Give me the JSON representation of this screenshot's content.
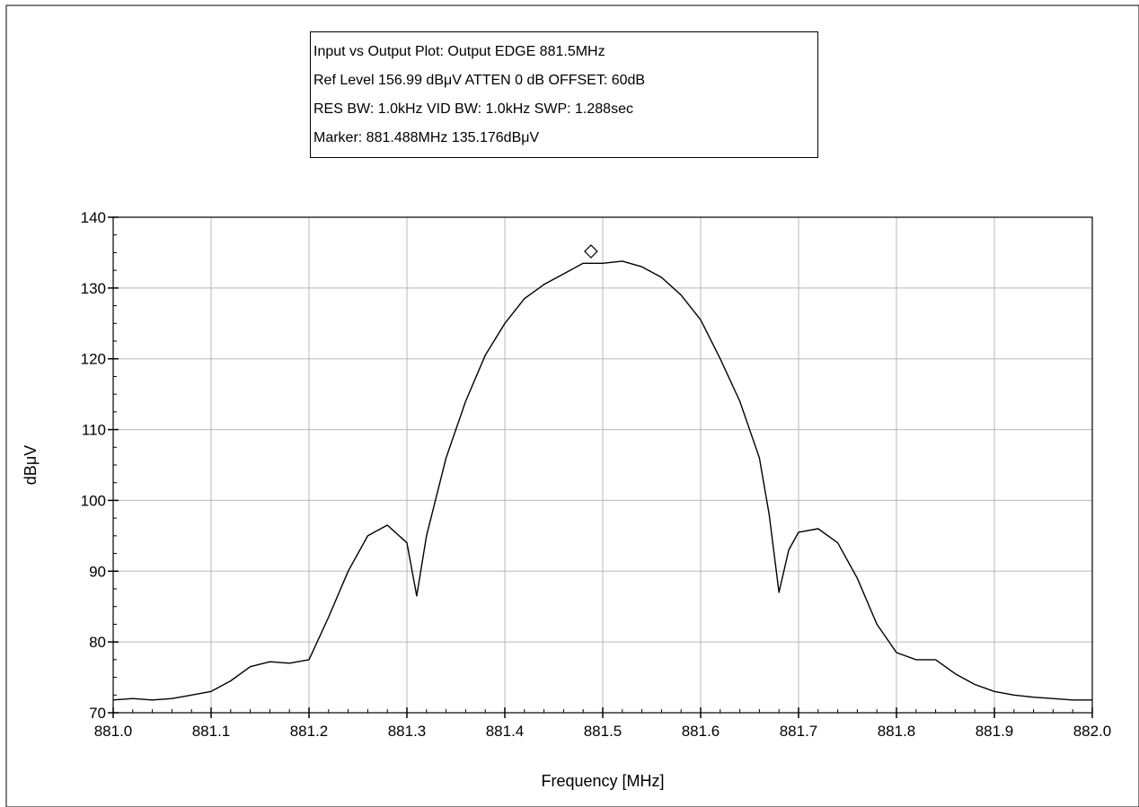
{
  "info_box": {
    "line1": "Input vs Output Plot: Output EDGE 881.5MHz",
    "line2": "Ref Level 156.99 dBμV    ATTEN 0 dB    OFFSET: 60dB",
    "line3": "RES BW: 1.0kHz  VID BW: 1.0kHz  SWP: 1.288sec",
    "line4": "Marker: 881.488MHz  135.176dBμV"
  },
  "chart_data": {
    "type": "line",
    "title": "",
    "xlabel": "Frequency [MHz]",
    "ylabel": "dBμV",
    "xlim": [
      881.0,
      882.0
    ],
    "ylim": [
      70,
      140
    ],
    "xticks": [
      "881.0",
      "881.1",
      "881.2",
      "881.3",
      "881.4",
      "881.5",
      "881.6",
      "881.7",
      "881.8",
      "881.9",
      "882.0"
    ],
    "yticks": [
      "70",
      "80",
      "90",
      "100",
      "110",
      "120",
      "130",
      "140"
    ],
    "grid": true,
    "marker": {
      "x": 881.488,
      "y": 135.176
    },
    "series": [
      {
        "x": [
          881.0,
          881.02,
          881.04,
          881.06,
          881.08,
          881.1,
          881.12,
          881.14,
          881.16,
          881.18,
          881.2,
          881.22,
          881.24,
          881.26,
          881.28,
          881.3,
          881.31,
          881.32,
          881.34,
          881.36,
          881.38,
          881.4,
          881.42,
          881.44,
          881.46,
          881.48,
          881.5,
          881.52,
          881.54,
          881.56,
          881.58,
          881.6,
          881.62,
          881.64,
          881.66,
          881.67,
          881.68,
          881.69,
          881.7,
          881.72,
          881.74,
          881.76,
          881.78,
          881.8,
          881.82,
          881.84,
          881.86,
          881.88,
          881.9,
          881.92,
          881.94,
          881.96,
          881.98,
          882.0
        ],
        "y": [
          71.8,
          72.0,
          71.8,
          72.0,
          72.5,
          73.0,
          74.5,
          76.5,
          77.2,
          77.0,
          77.5,
          83.5,
          90.0,
          95.0,
          96.5,
          94.0,
          86.5,
          95.0,
          106.0,
          114.0,
          120.5,
          125.0,
          128.5,
          130.5,
          132.0,
          133.5,
          133.5,
          133.8,
          133.0,
          131.5,
          129.0,
          125.5,
          120.0,
          114.0,
          106.0,
          98.0,
          87.0,
          93.0,
          95.5,
          96.0,
          94.0,
          89.0,
          82.5,
          78.5,
          77.5,
          77.5,
          75.5,
          74.0,
          73.0,
          72.5,
          72.2,
          72.0,
          71.8,
          71.8
        ]
      }
    ]
  }
}
